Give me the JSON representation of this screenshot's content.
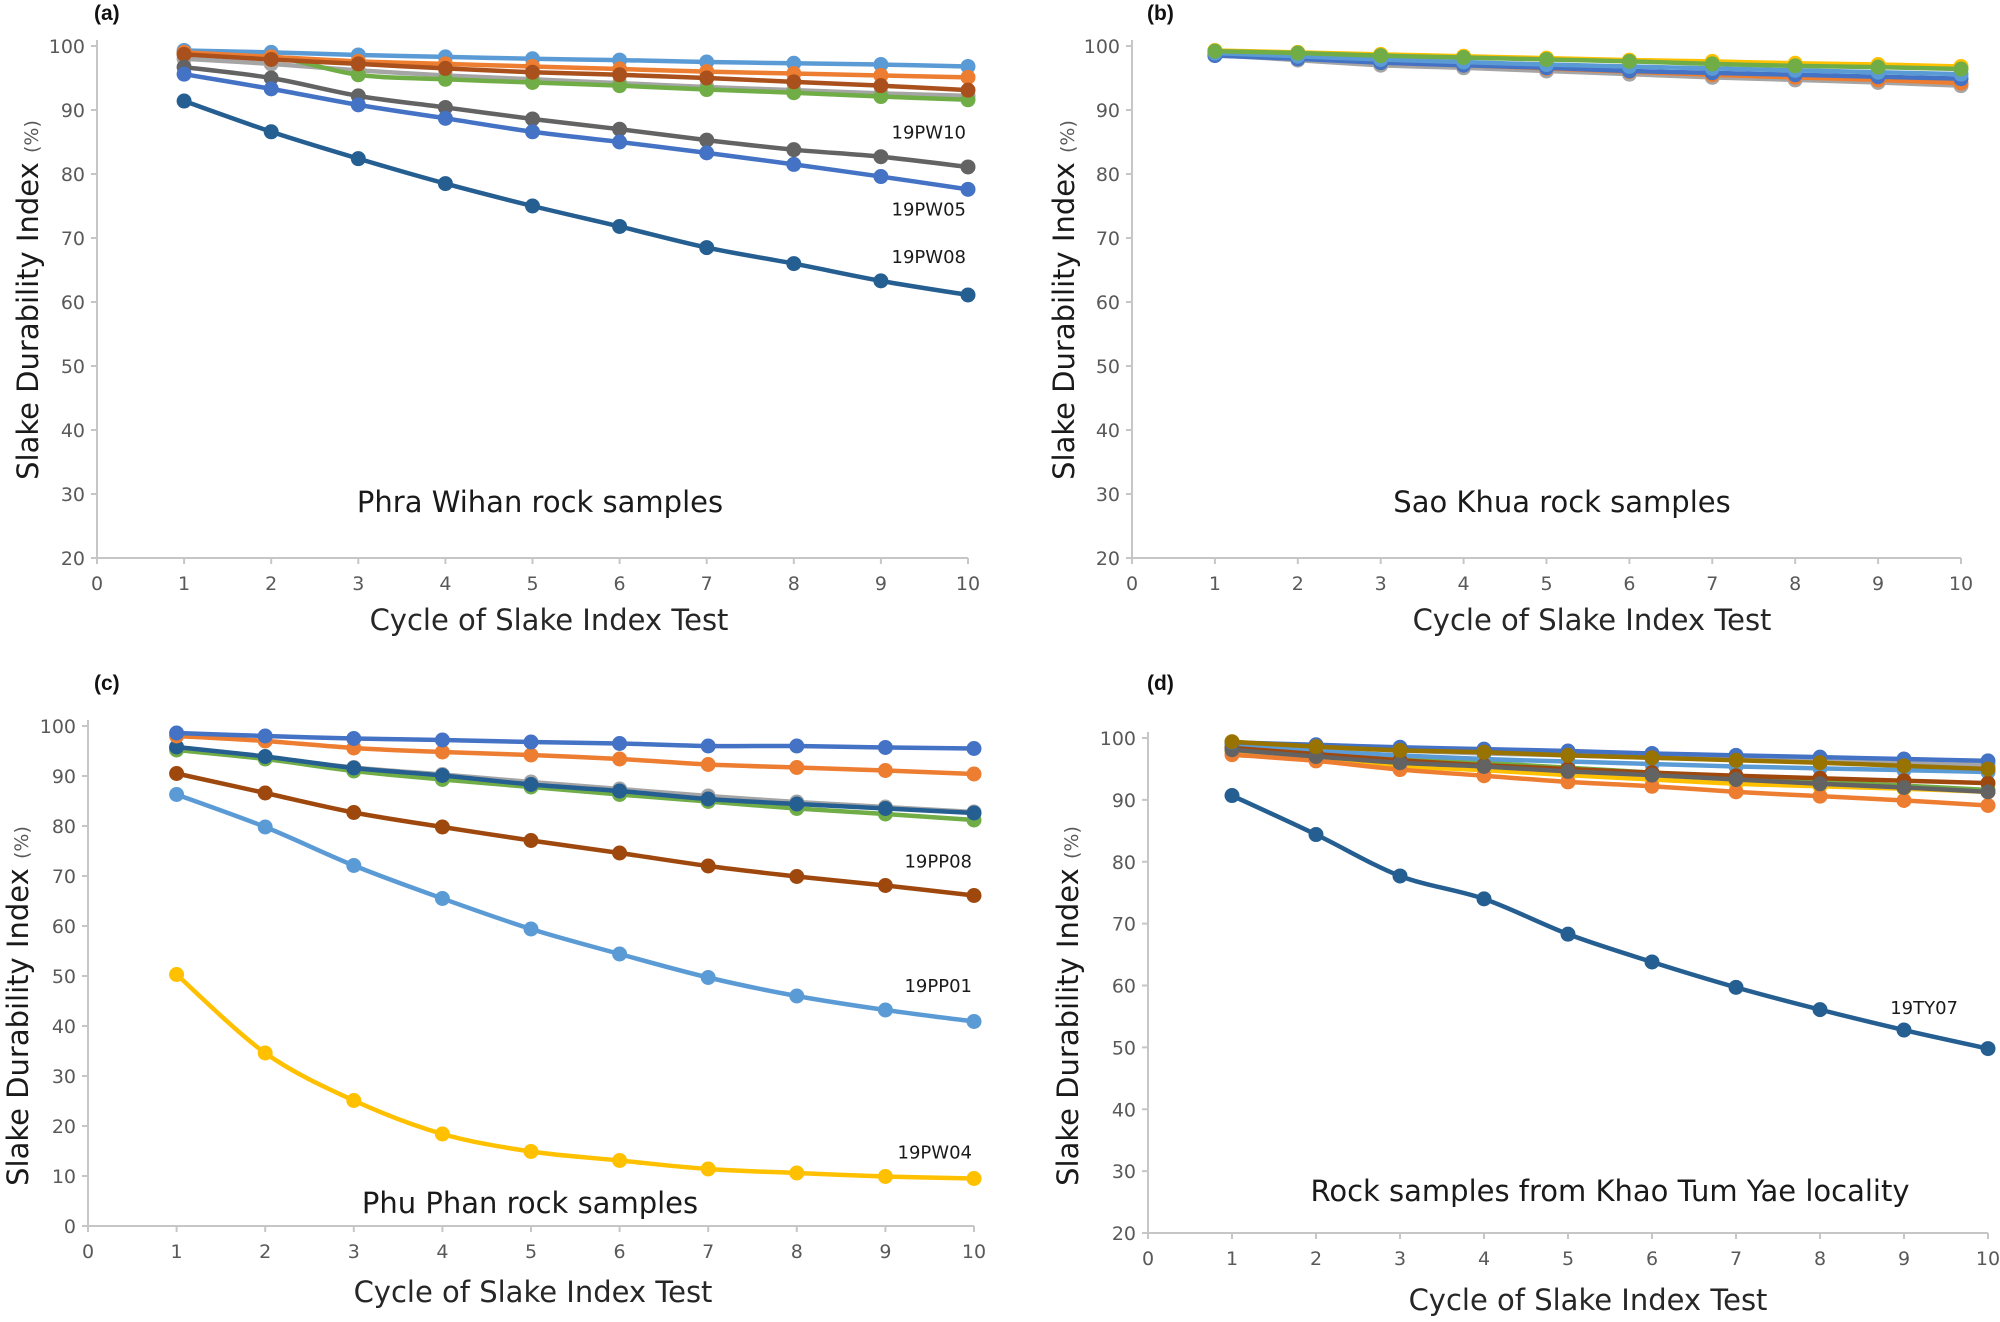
{
  "chart_data": [
    {
      "id": "a",
      "panel_label": "(a)",
      "type": "line",
      "caption": "Phra Wihan rock samples",
      "xlabel": "Cycle of Slake Index Test",
      "ylabel": "Slake Durability Index",
      "ylabel_unit": "(%)",
      "xlim": [
        0,
        10
      ],
      "ylim": [
        20,
        100
      ],
      "xticks": [
        0,
        1,
        2,
        3,
        4,
        5,
        6,
        7,
        8,
        9,
        10
      ],
      "yticks": [
        20,
        30,
        40,
        50,
        60,
        70,
        80,
        90,
        100
      ],
      "grid": false,
      "legend": "none",
      "x": [
        1,
        2,
        3,
        4,
        5,
        6,
        7,
        8,
        9,
        10
      ],
      "series": [
        {
          "name": "series-gray-light",
          "color": "#a5a5a5",
          "values": [
            98.0,
            97.2,
            96.2,
            95.4,
            94.8,
            94.2,
            93.6,
            93.1,
            92.6,
            92.2
          ]
        },
        {
          "name": "series-green",
          "color": "#70ad47",
          "values": [
            99.0,
            98.4,
            95.5,
            94.8,
            94.3,
            93.8,
            93.2,
            92.7,
            92.1,
            91.6
          ]
        },
        {
          "name": "series-light-blue",
          "color": "#5b9bd5",
          "values": [
            99.3,
            99.0,
            98.6,
            98.3,
            98.0,
            97.8,
            97.5,
            97.3,
            97.1,
            96.8
          ]
        },
        {
          "name": "series-orange",
          "color": "#ed7d31",
          "values": [
            99.0,
            98.3,
            97.6,
            97.2,
            96.8,
            96.4,
            96.0,
            95.7,
            95.4,
            95.1
          ]
        },
        {
          "name": "series-rust",
          "color": "#a9501c",
          "values": [
            98.7,
            97.9,
            97.2,
            96.5,
            95.9,
            95.5,
            95.0,
            94.4,
            93.8,
            93.1
          ]
        },
        {
          "name": "19PW10",
          "color": "#636363",
          "values": [
            96.7,
            95.0,
            92.2,
            90.4,
            88.6,
            87.0,
            85.3,
            83.8,
            82.7,
            81.1
          ]
        },
        {
          "name": "19PW05",
          "color": "#4472c4",
          "values": [
            95.6,
            93.3,
            90.8,
            88.7,
            86.6,
            85.0,
            83.3,
            81.5,
            79.6,
            77.6
          ]
        },
        {
          "name": "19PW08",
          "color": "#255e91",
          "values": [
            91.4,
            86.6,
            82.4,
            78.5,
            75.0,
            71.8,
            68.5,
            66.0,
            63.3,
            61.1
          ]
        }
      ],
      "annotations": [
        {
          "text": "19PW10",
          "series": "19PW10"
        },
        {
          "text": "19PW05",
          "series": "19PW05"
        },
        {
          "text": "19PW08",
          "series": "19PW08"
        }
      ]
    },
    {
      "id": "b",
      "panel_label": "(b)",
      "type": "line",
      "caption": "Sao Khua rock samples",
      "xlabel": "Cycle of Slake Index Test",
      "ylabel": "Slake Durability Index",
      "ylabel_unit": "(%)",
      "xlim": [
        0,
        10
      ],
      "ylim": [
        20,
        100
      ],
      "xticks": [
        0,
        1,
        2,
        3,
        4,
        5,
        6,
        7,
        8,
        9,
        10
      ],
      "yticks": [
        20,
        30,
        40,
        50,
        60,
        70,
        80,
        90,
        100
      ],
      "grid": false,
      "legend": "none",
      "x": [
        1,
        2,
        3,
        4,
        5,
        6,
        7,
        8,
        9,
        10
      ],
      "series": [
        {
          "name": "series-gray",
          "color": "#a5a5a5",
          "values": [
            98.6,
            97.8,
            97.0,
            96.6,
            96.1,
            95.6,
            95.1,
            94.7,
            94.3,
            93.8
          ]
        },
        {
          "name": "series-orange",
          "color": "#ed7d31",
          "values": [
            98.8,
            98.1,
            97.4,
            97.0,
            96.5,
            96.0,
            95.5,
            95.1,
            94.7,
            94.2
          ]
        },
        {
          "name": "series-blue",
          "color": "#4472c4",
          "values": [
            98.5,
            98.0,
            97.4,
            97.0,
            96.6,
            96.1,
            95.8,
            95.5,
            95.2,
            94.9
          ]
        },
        {
          "name": "series-light-blue",
          "color": "#5b9bd5",
          "values": [
            98.9,
            98.4,
            97.9,
            97.5,
            97.1,
            96.8,
            96.5,
            96.2,
            95.9,
            95.6
          ]
        },
        {
          "name": "series-yellow",
          "color": "#ffc000",
          "values": [
            99.3,
            99.0,
            98.7,
            98.4,
            98.1,
            97.8,
            97.6,
            97.3,
            97.1,
            96.8
          ]
        },
        {
          "name": "series-green",
          "color": "#70ad47",
          "values": [
            99.2,
            98.9,
            98.5,
            98.2,
            97.9,
            97.6,
            97.2,
            96.9,
            96.7,
            96.4
          ]
        }
      ],
      "annotations": []
    },
    {
      "id": "c",
      "panel_label": "(c)",
      "type": "line",
      "caption": "Phu Phan rock samples",
      "xlabel": "Cycle of Slake Index Test",
      "ylabel": "Slake Durability Index",
      "ylabel_unit": "(%)",
      "xlim": [
        0,
        10
      ],
      "ylim": [
        0,
        100
      ],
      "xticks": [
        0,
        1,
        2,
        3,
        4,
        5,
        6,
        7,
        8,
        9,
        10
      ],
      "yticks": [
        0,
        10,
        20,
        30,
        40,
        50,
        60,
        70,
        80,
        90,
        100
      ],
      "grid": false,
      "legend": "none",
      "x": [
        1,
        2,
        3,
        4,
        5,
        6,
        7,
        8,
        9,
        10
      ],
      "series": [
        {
          "name": "series-gray",
          "color": "#a5a5a5",
          "values": [
            95.6,
            93.8,
            91.7,
            90.3,
            88.8,
            87.4,
            86.0,
            84.8,
            83.8,
            82.8
          ]
        },
        {
          "name": "series-green",
          "color": "#70ad47",
          "values": [
            95.2,
            93.4,
            91.0,
            89.3,
            87.8,
            86.3,
            84.9,
            83.5,
            82.4,
            81.2
          ]
        },
        {
          "name": "series-dark-blue",
          "color": "#255e91",
          "values": [
            95.8,
            93.9,
            91.6,
            90.1,
            88.3,
            87.0,
            85.4,
            84.4,
            83.5,
            82.6
          ]
        },
        {
          "name": "series-orange",
          "color": "#ed7d31",
          "values": [
            98.0,
            97.0,
            95.6,
            94.8,
            94.2,
            93.4,
            92.3,
            91.7,
            91.1,
            90.4
          ]
        },
        {
          "name": "series-blue",
          "color": "#4472c4",
          "values": [
            98.6,
            98.0,
            97.5,
            97.2,
            96.8,
            96.5,
            96.0,
            96.0,
            95.7,
            95.5
          ]
        },
        {
          "name": "19PP08",
          "color": "#9e480e",
          "values": [
            90.5,
            86.6,
            82.7,
            79.8,
            77.1,
            74.6,
            72.0,
            69.9,
            68.1,
            66.1
          ]
        },
        {
          "name": "19PP01",
          "color": "#5b9bd5",
          "values": [
            86.3,
            79.8,
            72.1,
            65.5,
            59.4,
            54.4,
            49.7,
            46.0,
            43.2,
            40.9
          ]
        },
        {
          "name": "19PW04",
          "color": "#ffc000",
          "values": [
            50.3,
            34.6,
            25.1,
            18.4,
            14.9,
            13.1,
            11.4,
            10.6,
            9.9,
            9.5
          ]
        }
      ],
      "annotations": [
        {
          "text": "19PP08",
          "series": "19PP08"
        },
        {
          "text": "19PP01",
          "series": "19PP01"
        },
        {
          "text": "19PW04",
          "series": "19PW04"
        }
      ]
    },
    {
      "id": "d",
      "panel_label": "(d)",
      "type": "line",
      "caption": "Rock samples from Khao Tum Yae locality",
      "xlabel": "Cycle of Slake Index Test",
      "ylabel": "Slake Durability Index",
      "ylabel_unit": "(%)",
      "xlim": [
        0,
        10
      ],
      "ylim": [
        20,
        100
      ],
      "xticks": [
        0,
        1,
        2,
        3,
        4,
        5,
        6,
        7,
        8,
        9,
        10
      ],
      "yticks": [
        20,
        30,
        40,
        50,
        60,
        70,
        80,
        90,
        100
      ],
      "grid": false,
      "legend": "none",
      "x": [
        1,
        2,
        3,
        4,
        5,
        6,
        7,
        8,
        9,
        10
      ],
      "series": [
        {
          "name": "series-yellow",
          "color": "#ffc000",
          "values": [
            98.0,
            96.9,
            95.5,
            94.8,
            94.0,
            93.3,
            92.6,
            92.2,
            91.8,
            91.3
          ]
        },
        {
          "name": "series-green",
          "color": "#70ad47",
          "values": [
            98.5,
            97.6,
            96.8,
            96.0,
            95.2,
            94.4,
            93.6,
            92.9,
            92.3,
            91.6
          ]
        },
        {
          "name": "series-gray-light",
          "color": "#a5a5a5",
          "values": [
            99.0,
            98.5,
            98.0,
            97.5,
            97.2,
            96.8,
            96.5,
            96.2,
            95.9,
            95.6
          ]
        },
        {
          "name": "series-light-blue",
          "color": "#5b9bd5",
          "values": [
            98.7,
            97.9,
            97.2,
            96.6,
            96.2,
            95.8,
            95.4,
            95.1,
            94.8,
            94.5
          ]
        },
        {
          "name": "series-orange",
          "color": "#ed7d31",
          "values": [
            97.3,
            96.3,
            94.9,
            93.9,
            92.9,
            92.2,
            91.3,
            90.6,
            89.9,
            89.1
          ]
        },
        {
          "name": "series-rust",
          "color": "#9e480e",
          "values": [
            98.4,
            97.4,
            96.4,
            95.6,
            95.0,
            94.4,
            93.9,
            93.5,
            93.1,
            92.7
          ]
        },
        {
          "name": "series-dark-gray",
          "color": "#636363",
          "values": [
            98.1,
            97.0,
            96.0,
            95.4,
            94.6,
            94.0,
            93.3,
            92.6,
            92.0,
            91.3
          ]
        },
        {
          "name": "series-blue",
          "color": "#4472c4",
          "values": [
            99.3,
            98.9,
            98.5,
            98.2,
            97.9,
            97.5,
            97.2,
            96.9,
            96.6,
            96.3
          ]
        },
        {
          "name": "series-olive",
          "color": "#997300",
          "values": [
            99.4,
            98.6,
            98.0,
            97.7,
            97.2,
            96.8,
            96.4,
            96.0,
            95.5,
            95.0
          ]
        },
        {
          "name": "19TY07",
          "color": "#255e91",
          "values": [
            90.7,
            84.4,
            77.7,
            74.0,
            68.3,
            63.8,
            59.7,
            56.1,
            52.8,
            49.8
          ]
        }
      ],
      "annotations": [
        {
          "text": "19TY07",
          "series": "19TY07"
        }
      ]
    }
  ]
}
